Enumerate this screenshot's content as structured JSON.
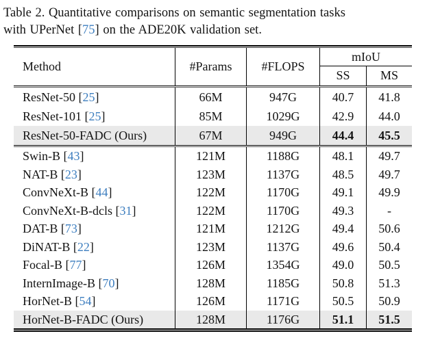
{
  "caption": {
    "line1": "Table 2. Quantitative comparisons on semantic segmentation tasks",
    "line2_pre": "with UPerNet [",
    "line2_cite": "75",
    "line2_post": "] on the ADE20K validation set."
  },
  "table": {
    "headers": {
      "method": "Method",
      "params": "#Params",
      "flops": "#FLOPS",
      "miou": "mIoU",
      "ss": "SS",
      "ms": "MS"
    },
    "rows": [
      {
        "pre": "ResNet-50 [",
        "cite": "25",
        "post": "]",
        "params": "66M",
        "flops": "947G",
        "ss": "40.7",
        "ms": "41.8",
        "highlighted": false,
        "bold_values": false
      },
      {
        "pre": "ResNet-101 [",
        "cite": "25",
        "post": "]",
        "params": "85M",
        "flops": "1029G",
        "ss": "42.9",
        "ms": "44.0",
        "highlighted": false,
        "bold_values": false
      },
      {
        "pre": "ResNet-50-FADC (Ours)",
        "cite": "",
        "post": "",
        "params": "67M",
        "flops": "949G",
        "ss": "44.4",
        "ms": "45.5",
        "highlighted": true,
        "bold_values": true
      },
      {
        "pre": "Swin-B [",
        "cite": "43",
        "post": "]",
        "params": "121M",
        "flops": "1188G",
        "ss": "48.1",
        "ms": "49.7",
        "highlighted": false,
        "bold_values": false
      },
      {
        "pre": "NAT-B [",
        "cite": "23",
        "post": "]",
        "params": "123M",
        "flops": "1137G",
        "ss": "48.5",
        "ms": "49.7",
        "highlighted": false,
        "bold_values": false
      },
      {
        "pre": "ConvNeXt-B [",
        "cite": "44",
        "post": "]",
        "params": "122M",
        "flops": "1170G",
        "ss": "49.1",
        "ms": "49.9",
        "highlighted": false,
        "bold_values": false
      },
      {
        "pre": "ConvNeXt-B-dcls [",
        "cite": "31",
        "post": "]",
        "params": "122M",
        "flops": "1170G",
        "ss": "49.3",
        "ms": "-",
        "highlighted": false,
        "bold_values": false
      },
      {
        "pre": "DAT-B [",
        "cite": "73",
        "post": "]",
        "params": "121M",
        "flops": "1212G",
        "ss": "49.4",
        "ms": "50.6",
        "highlighted": false,
        "bold_values": false
      },
      {
        "pre": "DiNAT-B [",
        "cite": "22",
        "post": "]",
        "params": "123M",
        "flops": "1137G",
        "ss": "49.6",
        "ms": "50.4",
        "highlighted": false,
        "bold_values": false
      },
      {
        "pre": "Focal-B [",
        "cite": "77",
        "post": "]",
        "params": "126M",
        "flops": "1354G",
        "ss": "49.0",
        "ms": "50.5",
        "highlighted": false,
        "bold_values": false
      },
      {
        "pre": "InternImage-B [",
        "cite": "70",
        "post": "]",
        "params": "128M",
        "flops": "1185G",
        "ss": "50.8",
        "ms": "51.3",
        "highlighted": false,
        "bold_values": false
      },
      {
        "pre": "HorNet-B [",
        "cite": "54",
        "post": "]",
        "params": "126M",
        "flops": "1171G",
        "ss": "50.5",
        "ms": "50.9",
        "highlighted": false,
        "bold_values": false
      },
      {
        "pre": "HorNet-B-FADC (Ours)",
        "cite": "",
        "post": "",
        "params": "128M",
        "flops": "1176G",
        "ss": "51.1",
        "ms": "51.5",
        "highlighted": true,
        "bold_values": true
      }
    ]
  },
  "colors": {
    "citation_link": "#3d7ebf",
    "highlight_row": "#e9e9e9",
    "text": "#131313",
    "background": "#ffffff"
  }
}
